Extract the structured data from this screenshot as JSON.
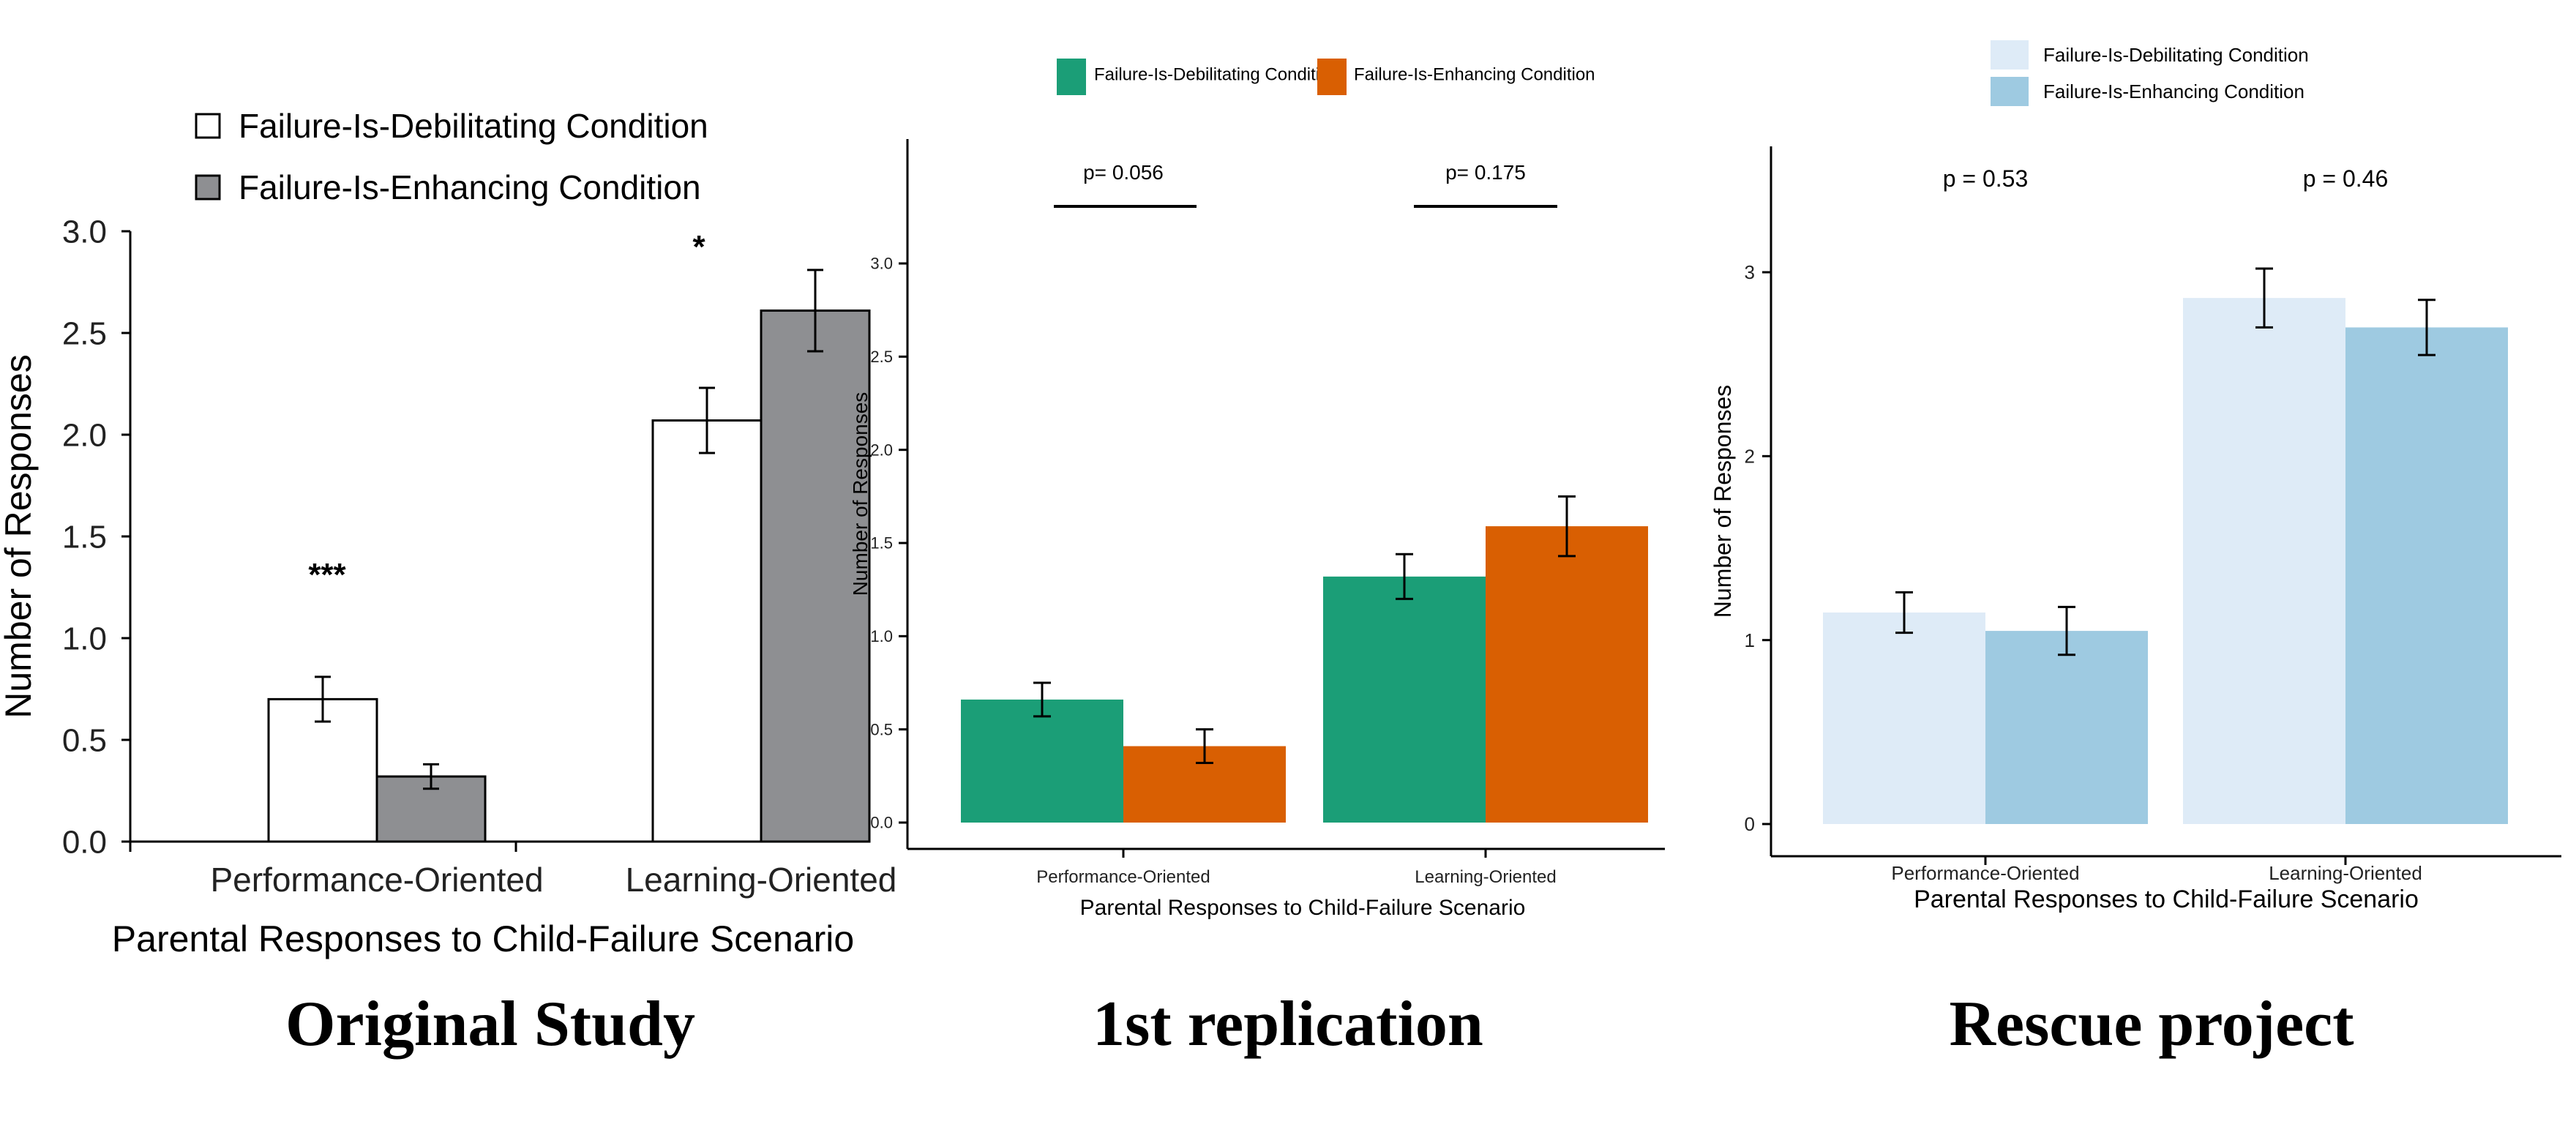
{
  "chart_data": [
    {
      "type": "bar",
      "panel_title": "Original Study",
      "categories": [
        "Performance-Oriented",
        "Learning-Oriented"
      ],
      "series": [
        {
          "name": "Failure-Is-Debilitating Condition",
          "values": [
            0.7,
            2.07
          ],
          "errors": [
            0.11,
            0.16
          ],
          "color": "#ffffff"
        },
        {
          "name": "Failure-Is-Enhancing Condition",
          "values": [
            0.32,
            2.61
          ],
          "errors": [
            0.06,
            0.2
          ],
          "color": "#8e8f92"
        }
      ],
      "significance": [
        "***",
        "*"
      ],
      "xlabel": "Parental Responses to Child-Failure Scenario",
      "ylabel": "Number of Responses",
      "ylim": [
        0,
        3.0
      ],
      "yticks": [
        "0.0",
        "0.5",
        "1.0",
        "1.5",
        "2.0",
        "2.5",
        "3.0"
      ],
      "legend": "top-left",
      "grid": false
    },
    {
      "type": "bar",
      "panel_title": "1st replication",
      "categories": [
        "Performance-Oriented",
        "Learning-Oriented"
      ],
      "series": [
        {
          "name": "Failure-Is-Debilitating Condition",
          "values": [
            0.66,
            1.32
          ],
          "errors": [
            0.09,
            0.12
          ],
          "color": "#1b9e77"
        },
        {
          "name": "Failure-Is-Enhancing Condition",
          "values": [
            0.41,
            1.59
          ],
          "errors": [
            0.09,
            0.16
          ],
          "color": "#d95f02"
        }
      ],
      "significance": [
        "p= 0.056",
        "p= 0.175"
      ],
      "xlabel": "Parental Responses to Child-Failure Scenario",
      "ylabel": "Number of Responses",
      "ylim": [
        0,
        3.0
      ],
      "yticks": [
        "0.0",
        "0.5",
        "1.0",
        "1.5",
        "2.0",
        "2.5",
        "3.0"
      ],
      "legend": "top",
      "grid": false
    },
    {
      "type": "bar",
      "panel_title": "Rescue project",
      "categories": [
        "Performance-Oriented",
        "Learning-Oriented"
      ],
      "series": [
        {
          "name": "Failure-Is-Debilitating Condition",
          "values": [
            1.15,
            2.86
          ],
          "errors": [
            0.11,
            0.16
          ],
          "color": "#deebf7"
        },
        {
          "name": "Failure-Is-Enhancing Condition",
          "values": [
            1.05,
            2.7
          ],
          "errors": [
            0.13,
            0.15
          ],
          "color": "#9ecae1"
        }
      ],
      "significance": [
        "p = 0.53",
        "p = 0.46"
      ],
      "xlabel": "Parental Responses to Child-Failure Scenario",
      "ylabel": "Number of Responses",
      "ylim": [
        0,
        3.0
      ],
      "yticks": [
        "0",
        "1",
        "2",
        "3"
      ],
      "legend": "top",
      "grid": false
    }
  ]
}
